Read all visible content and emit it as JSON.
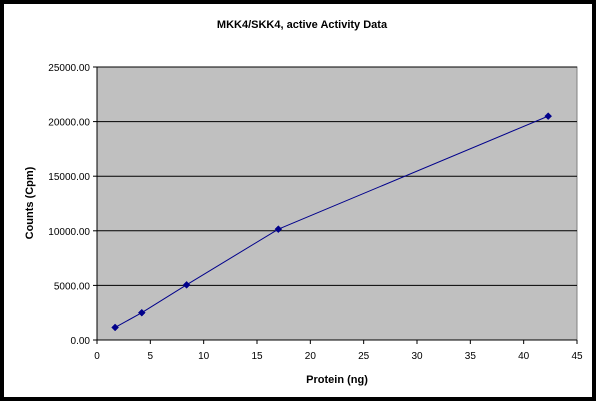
{
  "chart_data": {
    "type": "scatter",
    "title": "MKK4/SKK4, active Activity Data",
    "xlabel": "Protein (ng)",
    "ylabel": "Counts (Cpm)",
    "xlim": [
      0,
      45
    ],
    "ylim": [
      0,
      25000
    ],
    "x_ticks": [
      "0",
      "5",
      "10",
      "15",
      "20",
      "25",
      "30",
      "35",
      "40",
      "45"
    ],
    "x_tick_values": [
      0,
      5,
      10,
      15,
      20,
      25,
      30,
      35,
      40,
      45
    ],
    "y_ticks": [
      "0.00",
      "5000.00",
      "10000.00",
      "15000.00",
      "20000.00",
      "25000.00"
    ],
    "y_tick_values": [
      0,
      5000,
      10000,
      15000,
      20000,
      25000
    ],
    "grid": "horizontal",
    "legend": "none",
    "plot_background": "#c0c0c0",
    "series": [
      {
        "color": "#00008b",
        "marker": "diamond",
        "line": true,
        "points": [
          {
            "x": 1.7,
            "y": 1150
          },
          {
            "x": 4.2,
            "y": 2500
          },
          {
            "x": 8.4,
            "y": 5050
          },
          {
            "x": 17.0,
            "y": 10150
          },
          {
            "x": 42.3,
            "y": 20500
          }
        ]
      }
    ]
  }
}
